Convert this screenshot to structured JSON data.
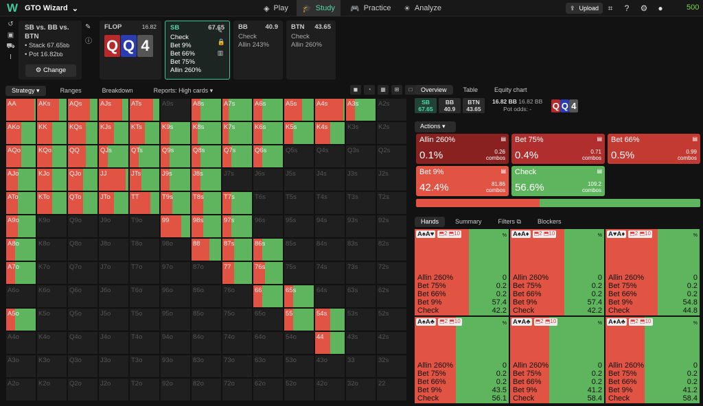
{
  "app": {
    "name": "GTO Wizard",
    "nav": [
      "Play",
      "Study",
      "Practice",
      "Analyze"
    ],
    "upload": "Upload",
    "coins": "500"
  },
  "panel": {
    "title": "SB vs. BB vs. BTN",
    "stack": "Stack 67.65",
    "pot": "Pot 16.82",
    "unit": "bb",
    "change": "Change"
  },
  "flop": {
    "label": "FLOP",
    "value": "16.82",
    "cards": [
      "Q",
      "Q",
      "4"
    ],
    "card_colors": [
      "#b82a2a",
      "#2a3db0",
      "#555555"
    ]
  },
  "players": [
    {
      "name": "SB",
      "stack": "67.65",
      "lines": [
        "Check",
        "Bet 9%",
        "Bet 66%",
        "Bet 75%",
        "Allin 260%"
      ]
    },
    {
      "name": "BB",
      "stack": "40.9",
      "lines": [
        "Check",
        "Allin 243%"
      ]
    },
    {
      "name": "BTN",
      "stack": "43.65",
      "lines": [
        "Check",
        "Allin 260%"
      ]
    }
  ],
  "left_tabs": [
    "Strategy",
    "Ranges",
    "Breakdown",
    "Reports: High cards"
  ],
  "right_tabs": [
    "Overview",
    "Table",
    "Equity chart"
  ],
  "pos_bar": [
    {
      "pos": "SB",
      "stack": "67.65"
    },
    {
      "pos": "BB",
      "stack": "40.9"
    },
    {
      "pos": "BTN",
      "stack": "43.65"
    }
  ],
  "pot_bb": "16.82 BB",
  "pot_bb2": "16.82 BB",
  "pot_odds": "Pot odds: -",
  "actions_label": "Actions",
  "actions": [
    {
      "name": "Allin 260%",
      "pct": "0.1%",
      "combos": "0.26",
      "color": "#8a2121"
    },
    {
      "name": "Bet 75%",
      "pct": "0.4%",
      "combos": "0.71",
      "color": "#b02e2e"
    },
    {
      "name": "Bet 66%",
      "pct": "0.5%",
      "combos": "0.99",
      "color": "#c33a33"
    },
    {
      "name": "Bet 9%",
      "pct": "42.4%",
      "combos": "81.86",
      "color": "#e15443"
    },
    {
      "name": "Check",
      "pct": "56.6%",
      "combos": "109.2",
      "color": "#5fb55e"
    }
  ],
  "combos_word": "combos",
  "strategy_split": {
    "bet": 0.434,
    "check": 0.566
  },
  "hand_tabs": [
    "Hands",
    "Summary",
    "Filters",
    "Blockers"
  ],
  "hand_cards": [
    {
      "cards": "A♠A♥",
      "s1": "2",
      "s2": "10",
      "red": 0.578,
      "vals": [
        "0",
        "0.2",
        "0.2",
        "57.4",
        "42.2"
      ]
    },
    {
      "cards": "A♠A♦",
      "s1": "2",
      "s2": "10",
      "red": 0.578,
      "vals": [
        "0",
        "0.2",
        "0.2",
        "57.4",
        "42.2"
      ]
    },
    {
      "cards": "A♥A♦",
      "s1": "2",
      "s2": "10",
      "red": 0.552,
      "vals": [
        "0",
        "0.2",
        "0.2",
        "54.8",
        "44.8"
      ]
    },
    {
      "cards": "A♠A♣",
      "s1": "2",
      "s2": "10",
      "red": 0.439,
      "vals": [
        "0",
        "0.2",
        "0.2",
        "43.5",
        "56.1"
      ]
    },
    {
      "cards": "A♥A♣",
      "s1": "2",
      "s2": "10",
      "red": 0.416,
      "vals": [
        "0",
        "0.2",
        "0.2",
        "41.2",
        "58.4"
      ]
    },
    {
      "cards": "A♦A♣",
      "s1": "2",
      "s2": "10",
      "red": 0.416,
      "vals": [
        "0",
        "0.2",
        "0.2",
        "41.2",
        "58.4"
      ]
    }
  ],
  "hand_actions": [
    "Allin 260",
    "Bet 75",
    "Bet 66",
    "Bet 9",
    "Check"
  ],
  "pct_sign": "%",
  "ranks": [
    "A",
    "K",
    "Q",
    "J",
    "T",
    "9",
    "8",
    "7",
    "6",
    "5",
    "4",
    "3",
    "2"
  ],
  "grid_colors": {
    "bet": "#e15443",
    "check": "#5fb55e",
    "empty": "#1f1f1f"
  },
  "grid_cells": {
    "AA": 0.95,
    "AKs": 0.75,
    "AQs": 0.75,
    "AJs": 0.8,
    "ATs": 0.8,
    "A7s": 0.2,
    "A5s": 0.6,
    "A4s": 0.95,
    "AKo": 0.5,
    "KK": 0.5,
    "KQs": 0.6,
    "KJs": 0.5,
    "KTs": 0.5,
    "K9s": 0.3,
    "K8s": 0.2,
    "K7s": 0.2,
    "K6s": 0.3,
    "K5s": 0.3,
    "K4s": 0.5,
    "AQo": 0.5,
    "KQo": 0.5,
    "QQ": 0.6,
    "QJs": 0.3,
    "QTs": 0.3,
    "Q9s": 0.3,
    "Q8s": 0.3,
    "Q7s": 0.3,
    "Q6s": 0.3,
    "AJo": 0.4,
    "KJo": 0.5,
    "QJo": 0.5,
    "JJ": 0.9,
    "JTs": 0.4,
    "J9s": 0.3,
    "J8s": 0.3,
    "ATo": 0.4,
    "KTo": 0.5,
    "QTo": 0.5,
    "JTo": 0.5,
    "TT": 0.7,
    "T9s": 0.4,
    "T8s": 0.4,
    "T7s": 0.3,
    "A9o": 0.4,
    "99": 0.7,
    "98s": 0.4,
    "97s": 0.3,
    "A8o": 0.3,
    "88": 0.6,
    "87s": 0.4,
    "86s": 0.3,
    "A7o": 0.3,
    "77": 0.4,
    "76s": 0.4,
    "66": 0.3,
    "65s": 0.3,
    "A5o": 0.3,
    "55": 0.3,
    "54s": 0.5,
    "44": 0.5,
    "A6s": 0.3,
    "A8s": 0.3,
    "A3s": 0.3
  }
}
